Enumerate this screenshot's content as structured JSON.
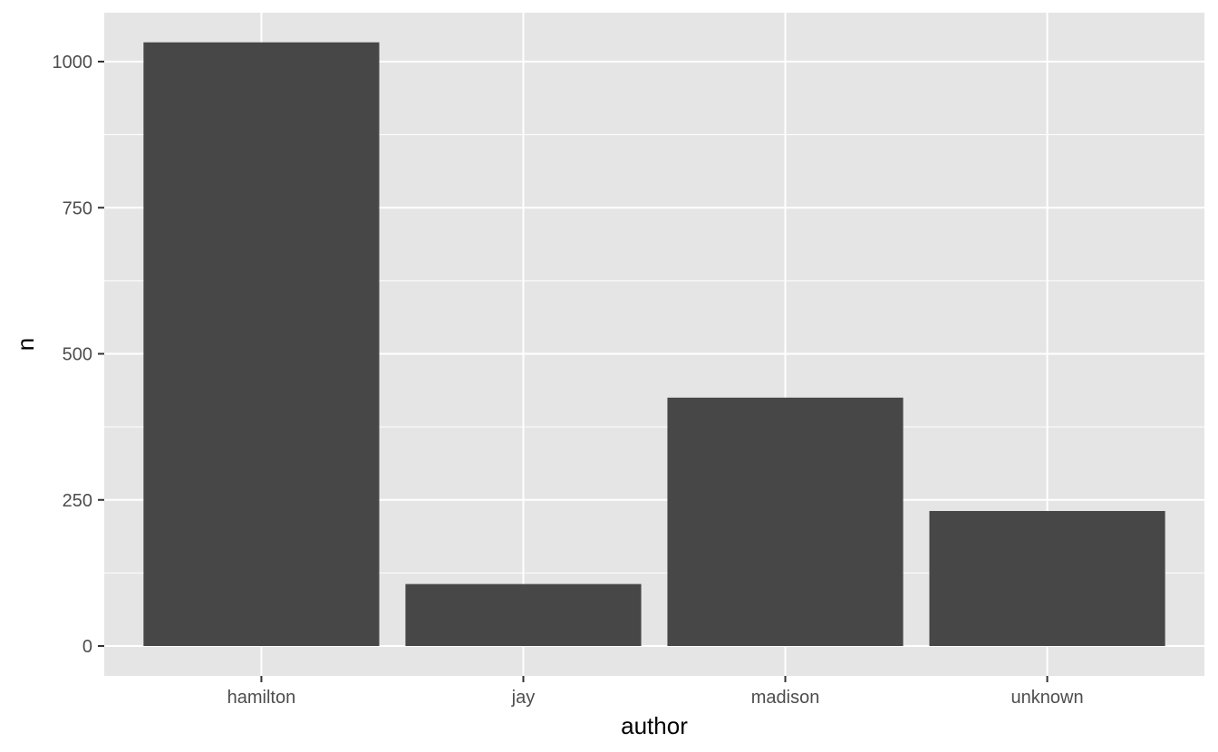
{
  "chart_data": {
    "type": "bar",
    "title": "",
    "xlabel": "author",
    "ylabel": "n",
    "categories": [
      "hamilton",
      "jay",
      "madison",
      "unknown"
    ],
    "values": [
      1033,
      106,
      425,
      231
    ],
    "ylim": [
      -50,
      1085
    ],
    "yticks": [
      0,
      250,
      500,
      750,
      1000
    ],
    "ytick_labels": [
      "0",
      "250",
      "500",
      "750",
      "1000"
    ],
    "grid": true,
    "legend": "none",
    "colors": {
      "panel_background": "#e5e5e5",
      "grid": "#ffffff",
      "bar_fill": "#474747",
      "tick_mark": "#333333",
      "tick_label": "#4d4d4d"
    }
  }
}
